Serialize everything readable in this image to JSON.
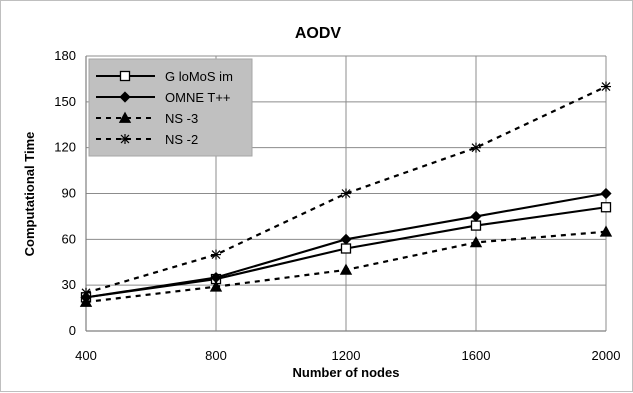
{
  "chart_data": {
    "type": "line",
    "title": "AODV",
    "xlabel": "Number of nodes",
    "ylabel": "Computational Time",
    "x": [
      400,
      800,
      1200,
      1600,
      2000
    ],
    "xlim": [
      400,
      2000
    ],
    "ylim": [
      0,
      180
    ],
    "yticks": [
      0,
      30,
      60,
      90,
      120,
      150,
      180
    ],
    "grid": true,
    "legend_position": "top-left",
    "series": [
      {
        "name": "G loMoS im",
        "values": [
          22,
          34,
          54,
          69,
          81
        ],
        "marker": "open-square",
        "line_style": "solid",
        "color": "#000000"
      },
      {
        "name": "OMNE T++",
        "values": [
          22,
          35,
          60,
          75,
          90
        ],
        "marker": "filled-diamond",
        "line_style": "solid",
        "color": "#000000"
      },
      {
        "name": "NS -3",
        "values": [
          19,
          29,
          40,
          58,
          65
        ],
        "marker": "filled-triangle",
        "line_style": "dashed",
        "color": "#000000"
      },
      {
        "name": "NS -2",
        "values": [
          25,
          50,
          90,
          120,
          160
        ],
        "marker": "star",
        "line_style": "dashed",
        "color": "#000000"
      }
    ],
    "colors": {
      "gridline": "#8c8c8c",
      "legend_background": "#c0c0c0",
      "axis": "#7f7f7f",
      "line": "#000000"
    }
  }
}
